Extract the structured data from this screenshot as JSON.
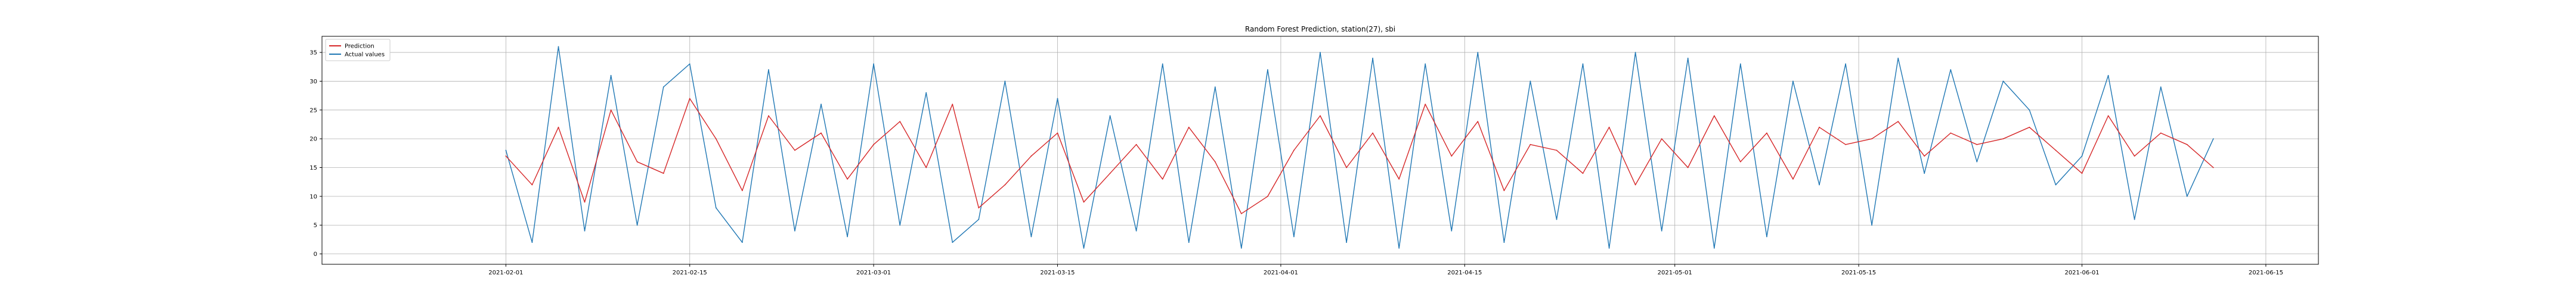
{
  "chart_data": {
    "type": "line",
    "title": "Random Forest Prediction, station(27), sbi",
    "xlabel": "",
    "ylabel": "",
    "x_range": [
      "2021-01-18",
      "2021-06-19"
    ],
    "ylim": [
      -1.8,
      37.8
    ],
    "grid": true,
    "legend_position": "top-left",
    "y_ticks": [
      0,
      5,
      10,
      15,
      20,
      25,
      30,
      35
    ],
    "x_ticks": [
      {
        "date": "2021-02-01",
        "label": "2021-02-01"
      },
      {
        "date": "2021-02-15",
        "label": "2021-02-15"
      },
      {
        "date": "2021-03-01",
        "label": "2021-03-01"
      },
      {
        "date": "2021-03-15",
        "label": "2021-03-15"
      },
      {
        "date": "2021-04-01",
        "label": "2021-04-01"
      },
      {
        "date": "2021-04-15",
        "label": "2021-04-15"
      },
      {
        "date": "2021-05-01",
        "label": "2021-05-01"
      },
      {
        "date": "2021-05-15",
        "label": "2021-05-15"
      },
      {
        "date": "2021-06-01",
        "label": "2021-06-01"
      },
      {
        "date": "2021-06-15",
        "label": "2021-06-15"
      }
    ],
    "x_dates": [
      "2021-02-01",
      "2021-02-03",
      "2021-02-05",
      "2021-02-07",
      "2021-02-09",
      "2021-02-11",
      "2021-02-13",
      "2021-02-15",
      "2021-02-17",
      "2021-02-19",
      "2021-02-21",
      "2021-02-23",
      "2021-02-25",
      "2021-02-27",
      "2021-03-01",
      "2021-03-03",
      "2021-03-05",
      "2021-03-07",
      "2021-03-09",
      "2021-03-11",
      "2021-03-13",
      "2021-03-15",
      "2021-03-17",
      "2021-03-19",
      "2021-03-21",
      "2021-03-23",
      "2021-03-25",
      "2021-03-27",
      "2021-03-29",
      "2021-03-31",
      "2021-04-02",
      "2021-04-04",
      "2021-04-06",
      "2021-04-08",
      "2021-04-10",
      "2021-04-12",
      "2021-04-14",
      "2021-04-16",
      "2021-04-18",
      "2021-04-20",
      "2021-04-22",
      "2021-04-24",
      "2021-04-26",
      "2021-04-28",
      "2021-04-30",
      "2021-05-02",
      "2021-05-04",
      "2021-05-06",
      "2021-05-08",
      "2021-05-10",
      "2021-05-12",
      "2021-05-14",
      "2021-05-16",
      "2021-05-18",
      "2021-05-20",
      "2021-05-22",
      "2021-05-24",
      "2021-05-26",
      "2021-05-28",
      "2021-05-30",
      "2021-06-01",
      "2021-06-03",
      "2021-06-05",
      "2021-06-07",
      "2021-06-09",
      "2021-06-11"
    ],
    "series": [
      {
        "name": "Prediction",
        "color": "#d62728",
        "values": [
          17,
          12,
          22,
          9,
          25,
          16,
          14,
          27,
          20,
          11,
          24,
          18,
          21,
          13,
          19,
          23,
          15,
          26,
          8,
          12,
          17,
          21,
          9,
          14,
          19,
          13,
          22,
          16,
          7,
          10,
          18,
          24,
          15,
          21,
          13,
          26,
          17,
          23,
          11,
          19,
          18,
          14,
          22,
          12,
          20,
          15,
          24,
          16,
          21,
          13,
          22,
          19,
          20,
          23,
          17,
          21,
          19,
          20,
          22,
          18,
          14,
          24,
          17,
          21,
          19,
          15
        ]
      },
      {
        "name": "Actual values",
        "color": "#1f77b4",
        "values": [
          18,
          2,
          36,
          4,
          31,
          5,
          29,
          33,
          8,
          2,
          32,
          4,
          26,
          3,
          33,
          5,
          28,
          2,
          6,
          30,
          3,
          27,
          1,
          24,
          4,
          33,
          2,
          29,
          1,
          32,
          3,
          35,
          2,
          34,
          1,
          33,
          4,
          35,
          2,
          30,
          6,
          33,
          1,
          35,
          4,
          34,
          1,
          33,
          3,
          30,
          12,
          33,
          5,
          34,
          14,
          32,
          16,
          30,
          25,
          12,
          17,
          31,
          6,
          29,
          10,
          20
        ]
      }
    ]
  }
}
